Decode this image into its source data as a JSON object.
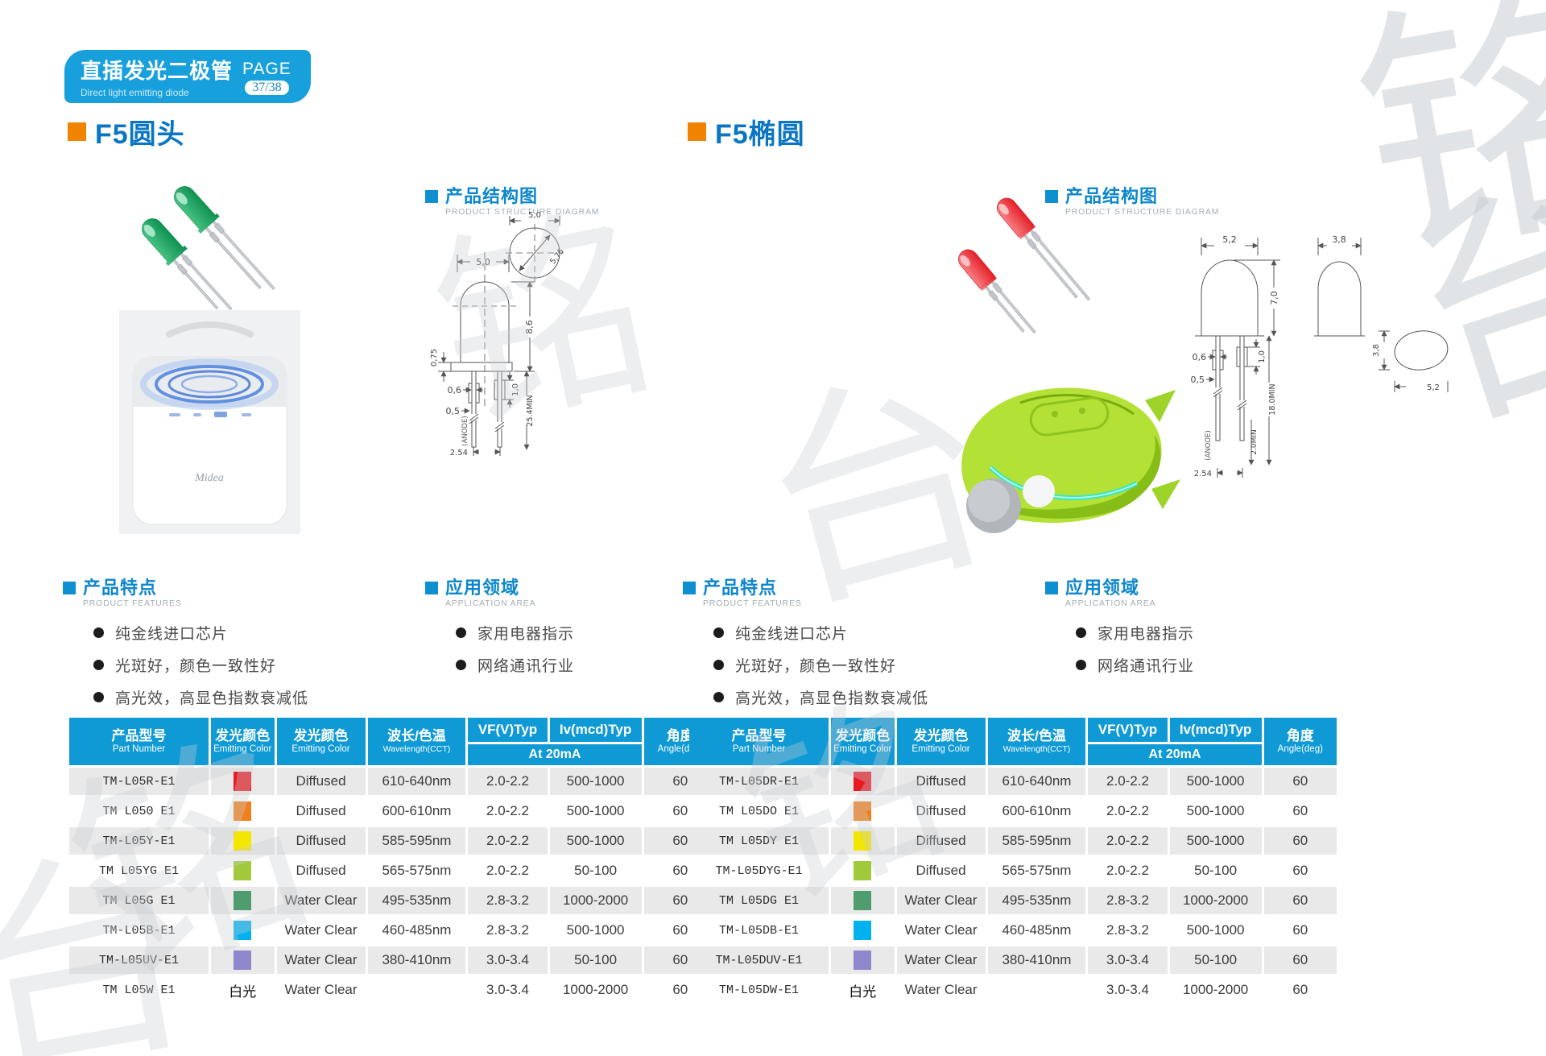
{
  "header": {
    "title_zh": "直插发光二极管",
    "title_en": "Direct light emitting diode",
    "page_label": "PAGE",
    "page_number": "37/38"
  },
  "watermark": {
    "chars": [
      "铭",
      "台",
      "铭",
      "台",
      "铭",
      "台",
      "铭"
    ]
  },
  "shared": {
    "structure_zh": "产品结构图",
    "structure_en": "PRODUCT STRUCTURE DIAGRAM",
    "features_zh": "产品特点",
    "features_en": "PRODUCT FEATURES",
    "applications_zh": "应用领域",
    "applications_en": "APPLICATION AREA",
    "feature_items": [
      "纯金线进口芯片",
      "光斑好，颜色一致性好",
      "高光效，高显色指数衰减低"
    ],
    "application_items": [
      "家用电器指示",
      "网络通讯行业"
    ]
  },
  "sections": {
    "left": {
      "title": "F5圆头"
    },
    "right": {
      "title": "F5椭圆"
    }
  },
  "table_header": {
    "part_zh": "产品型号",
    "part_en": "Part Number",
    "color_zh": "发光颜色",
    "color_en": "Emitting Color",
    "wavelength_zh": "波长/色温",
    "wavelength_en": "Wavelength(CCT)",
    "vf": "VF(V)Typ",
    "iv": "Iv(mcd)Typ",
    "at": "At 20mA",
    "angle_zh": "角度",
    "angle_en": "Angle(deg)"
  },
  "tables": {
    "left": {
      "rows": [
        {
          "part": "TM-L05R-E1",
          "swatch": "#e81b23",
          "swatch_text": "",
          "type": "Diffused",
          "wavelength": "610-640nm",
          "vf": "2.0-2.2",
          "iv": "500-1000",
          "angle": "60"
        },
        {
          "part": "TM L050 E1",
          "swatch": "#ee7f1b",
          "swatch_text": "",
          "type": "Diffused",
          "wavelength": "600-610nm",
          "vf": "2.0-2.2",
          "iv": "500-1000",
          "angle": "60"
        },
        {
          "part": "TM-L05Y-E1",
          "swatch": "#f3e600",
          "swatch_text": "",
          "type": "Diffused",
          "wavelength": "585-595nm",
          "vf": "2.0-2.2",
          "iv": "500-1000",
          "angle": "60"
        },
        {
          "part": "TM L05YG E1",
          "swatch": "#a2c83b",
          "swatch_text": "",
          "type": "Diffused",
          "wavelength": "565-575nm",
          "vf": "2.0-2.2",
          "iv": "50-100",
          "angle": "60"
        },
        {
          "part": "TM L05G E1",
          "swatch": "#4f9d6e",
          "swatch_text": "",
          "type": "Water Clear",
          "wavelength": "495-535nm",
          "vf": "2.8-3.2",
          "iv": "1000-2000",
          "angle": "60"
        },
        {
          "part": "TM-L05B-E1",
          "swatch": "#00b1f0",
          "swatch_text": "",
          "type": "Water Clear",
          "wavelength": "460-485nm",
          "vf": "2.8-3.2",
          "iv": "500-1000",
          "angle": "60"
        },
        {
          "part": "TM-L05UV-E1",
          "swatch": "#8e87cc",
          "swatch_text": "",
          "type": "Water Clear",
          "wavelength": "380-410nm",
          "vf": "3.0-3.4",
          "iv": "50-100",
          "angle": "60"
        },
        {
          "part": "TM L05W E1",
          "swatch": null,
          "swatch_text": "白光",
          "type": "Water Clear",
          "wavelength": "",
          "vf": "3.0-3.4",
          "iv": "1000-2000",
          "angle": "60"
        }
      ]
    },
    "right": {
      "rows": [
        {
          "part": "TM-L05DR-E1",
          "swatch": "#e81b23",
          "swatch_text": "",
          "type": "Diffused",
          "wavelength": "610-640nm",
          "vf": "2.0-2.2",
          "iv": "500-1000",
          "angle": "60"
        },
        {
          "part": "TM L05DO E1",
          "swatch": "#ee7f1b",
          "swatch_text": "",
          "type": "Diffused",
          "wavelength": "600-610nm",
          "vf": "2.0-2.2",
          "iv": "500-1000",
          "angle": "60"
        },
        {
          "part": "TM L05DY E1",
          "swatch": "#f3e600",
          "swatch_text": "",
          "type": "Diffused",
          "wavelength": "585-595nm",
          "vf": "2.0-2.2",
          "iv": "500-1000",
          "angle": "60"
        },
        {
          "part": "TM-L05DYG-E1",
          "swatch": "#a2c83b",
          "swatch_text": "",
          "type": "Diffused",
          "wavelength": "565-575nm",
          "vf": "2.0-2.2",
          "iv": "50-100",
          "angle": "60"
        },
        {
          "part": "TM L05DG E1",
          "swatch": "#4f9d6e",
          "swatch_text": "",
          "type": "Water Clear",
          "wavelength": "495-535nm",
          "vf": "2.8-3.2",
          "iv": "1000-2000",
          "angle": "60"
        },
        {
          "part": "TM-L05DB-E1",
          "swatch": "#00b1f0",
          "swatch_text": "",
          "type": "Water Clear",
          "wavelength": "460-485nm",
          "vf": "2.8-3.2",
          "iv": "500-1000",
          "angle": "60"
        },
        {
          "part": "TM-L05DUV-E1",
          "swatch": "#8e87cc",
          "swatch_text": "",
          "type": "Water Clear",
          "wavelength": "380-410nm",
          "vf": "3.0-3.4",
          "iv": "50-100",
          "angle": "60"
        },
        {
          "part": "TM-L05DW-E1",
          "swatch": null,
          "swatch_text": "白光",
          "type": "Water Clear",
          "wavelength": "",
          "vf": "3.0-3.4",
          "iv": "1000-2000",
          "angle": "60"
        }
      ]
    }
  },
  "diagrams": {
    "round": {
      "top_width": "5,0",
      "body_height": "8,6",
      "flange": "0,75",
      "lead_w1": "0,6",
      "lead_w2": "0,5",
      "tab_h": "1,0",
      "lead_len": "25.4MIN",
      "anode": "(ANODE)",
      "pitch": "2.54",
      "tv_width": "5,0",
      "tv_diameter": "5,75"
    },
    "oval": {
      "front_width": "5,2",
      "front_height": "7,0",
      "side_width": "3,8",
      "lead_w1": "0,6",
      "lead_w2": "0,5",
      "tab_h": "1,0",
      "lead_len": "18.0MIN",
      "lead_len2": "2.0MIN",
      "anode": "(ANODE)",
      "pitch": "2.54",
      "tv_height": "3,8",
      "tv_width": "5,2"
    }
  },
  "photos": {
    "midea_logo": "Midea"
  }
}
